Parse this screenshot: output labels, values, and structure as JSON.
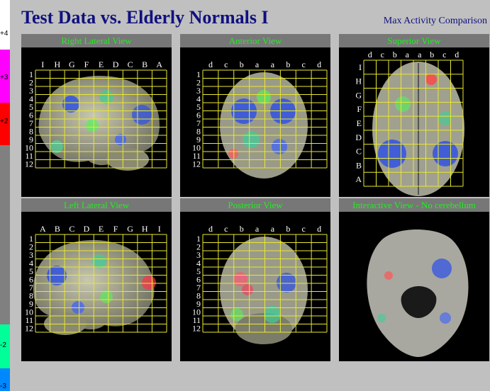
{
  "title": "Test Data vs. Elderly Normals I",
  "subtitle": "Max Activity Comparison",
  "scale": {
    "segments": [
      {
        "label": "+4",
        "color": "#ffffff"
      },
      {
        "label": "+3",
        "color": "#ff00ff"
      },
      {
        "label": "+2",
        "color": "#ff0000"
      },
      {
        "label": "",
        "color": "#808080"
      },
      {
        "label": "-2",
        "color": "#00ff99"
      },
      {
        "label": "-3",
        "color": "#0088ff"
      }
    ]
  },
  "panels": [
    {
      "title": "Right Lateral View",
      "cols": [
        "I",
        "H",
        "G",
        "F",
        "E",
        "D",
        "C",
        "B",
        "A"
      ],
      "rows": [
        "1",
        "2",
        "3",
        "4",
        "5",
        "6",
        "7",
        "8",
        "9",
        "10",
        "11",
        "12"
      ]
    },
    {
      "title": "Anterior View",
      "cols": [
        "d",
        "c",
        "b",
        "a",
        "a",
        "b",
        "c",
        "d"
      ],
      "rows": [
        "1",
        "2",
        "3",
        "4",
        "5",
        "6",
        "7",
        "8",
        "9",
        "10",
        "11",
        "12"
      ]
    },
    {
      "title": "Superior View",
      "cols": [
        "d",
        "c",
        "b",
        "a",
        "a",
        "b",
        "c",
        "d"
      ],
      "rows": [
        "I",
        "H",
        "G",
        "F",
        "E",
        "D",
        "C",
        "B",
        "A"
      ]
    },
    {
      "title": "Left Lateral View",
      "cols": [
        "A",
        "B",
        "C",
        "D",
        "E",
        "F",
        "G",
        "H",
        "I"
      ],
      "rows": [
        "1",
        "2",
        "3",
        "4",
        "5",
        "6",
        "7",
        "8",
        "9",
        "10",
        "11",
        "12"
      ]
    },
    {
      "title": "Posterior View",
      "cols": [
        "d",
        "c",
        "b",
        "a",
        "a",
        "b",
        "c",
        "d"
      ],
      "rows": [
        "1",
        "2",
        "3",
        "4",
        "5",
        "6",
        "7",
        "8",
        "9",
        "10",
        "11",
        "12"
      ]
    },
    {
      "title": "Interactive View - No cerebellum",
      "cols": [],
      "rows": []
    }
  ]
}
